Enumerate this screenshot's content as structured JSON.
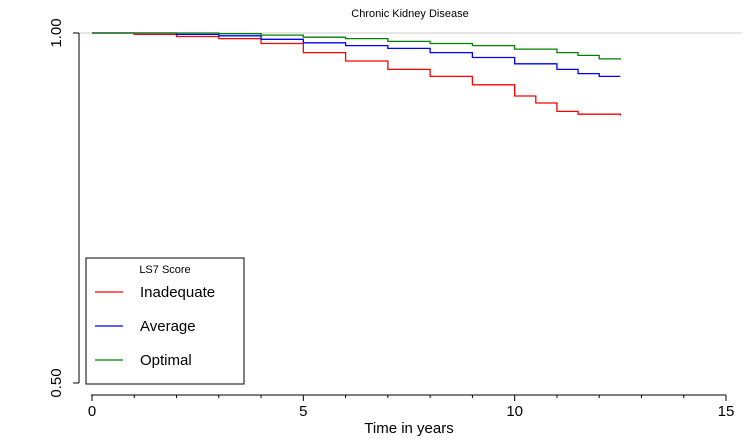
{
  "chart_data": {
    "type": "line",
    "title": "Chronic Kidney Disease",
    "xlabel": "Time in years",
    "ylabel": "",
    "xlim": [
      0,
      15
    ],
    "ylim": [
      0.5,
      1.0
    ],
    "x_ticks": [
      0,
      5,
      10,
      15
    ],
    "x_tick_labels": [
      "0",
      "5",
      "10",
      "15"
    ],
    "y_ticks": [
      0.5,
      1.0
    ],
    "y_tick_labels": [
      "0.50",
      "1.00"
    ],
    "reference_line": 1.0,
    "grid": false,
    "legend": {
      "title": "LS7 Score",
      "placement": "bottom-left"
    },
    "series": [
      {
        "name": "Inadequate",
        "color": "#ff0000",
        "points": [
          [
            0,
            1.0
          ],
          [
            1,
            0.998
          ],
          [
            2,
            0.995
          ],
          [
            3,
            0.992
          ],
          [
            4,
            0.985
          ],
          [
            5,
            0.972
          ],
          [
            6,
            0.96
          ],
          [
            7,
            0.948
          ],
          [
            8,
            0.938
          ],
          [
            9,
            0.926
          ],
          [
            10,
            0.91
          ],
          [
            10.5,
            0.9
          ],
          [
            11,
            0.888
          ],
          [
            11.5,
            0.884
          ],
          [
            12,
            0.884
          ],
          [
            12.5,
            0.882
          ]
        ]
      },
      {
        "name": "Average",
        "color": "#0000ff",
        "points": [
          [
            0,
            1.0
          ],
          [
            1,
            1.0
          ],
          [
            2,
            0.998
          ],
          [
            3,
            0.996
          ],
          [
            4,
            0.991
          ],
          [
            5,
            0.986
          ],
          [
            6,
            0.982
          ],
          [
            7,
            0.978
          ],
          [
            8,
            0.972
          ],
          [
            9,
            0.965
          ],
          [
            10,
            0.956
          ],
          [
            11,
            0.948
          ],
          [
            11.5,
            0.942
          ],
          [
            12,
            0.938
          ],
          [
            12.5,
            0.938
          ]
        ]
      },
      {
        "name": "Optimal",
        "color": "#008000",
        "points": [
          [
            0,
            1.0
          ],
          [
            1,
            1.0
          ],
          [
            2,
            1.0
          ],
          [
            3,
            0.999
          ],
          [
            4,
            0.997
          ],
          [
            5,
            0.994
          ],
          [
            6,
            0.992
          ],
          [
            7,
            0.988
          ],
          [
            8,
            0.985
          ],
          [
            9,
            0.982
          ],
          [
            10,
            0.977
          ],
          [
            11,
            0.972
          ],
          [
            11.5,
            0.968
          ],
          [
            12,
            0.963
          ],
          [
            12.5,
            0.962
          ]
        ]
      }
    ]
  }
}
